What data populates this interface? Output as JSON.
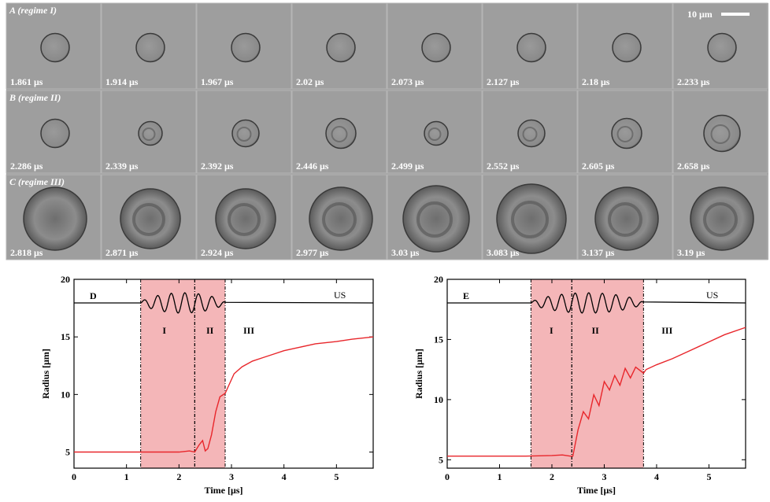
{
  "figure": {
    "scale_bar": "10 μm",
    "panels": [
      {
        "label": "A (regime I)",
        "frames": [
          "1.861 μs",
          "1.914 μs",
          "1.967 μs",
          "2.02 μs",
          "2.073 μs",
          "2.127 μs",
          "2.18 μs",
          "2.233 μs"
        ]
      },
      {
        "label": "B (regime II)",
        "frames": [
          "2.286 μs",
          "2.339 μs",
          "2.392 μs",
          "2.446 μs",
          "2.499 μs",
          "2.552 μs",
          "2.605 μs",
          "2.658 μs"
        ]
      },
      {
        "label": "C (regime III)",
        "frames": [
          "2.818 μs",
          "2.871 μs",
          "2.924 μs",
          "2.977 μs",
          "3.03 μs",
          "3.083 μs",
          "3.137 μs",
          "3.19 μs"
        ]
      }
    ]
  },
  "chart_data": [
    {
      "type": "line",
      "panel": "D",
      "xlabel": "Time [μs]",
      "ylabel": "Radius [μm]",
      "pulse_label": "US",
      "xlim": [
        0,
        5.7
      ],
      "ylim": [
        3.6,
        20
      ],
      "xticks": [
        0,
        1,
        2,
        3,
        4,
        5
      ],
      "yticks": [
        5,
        10,
        15,
        20
      ],
      "regions": [
        {
          "label": "I",
          "start": 1.27,
          "end": 2.3,
          "color": "#f4b6b8"
        },
        {
          "label": "II",
          "start": 2.3,
          "end": 2.88,
          "color": "#f4b6b8"
        },
        {
          "label": "III",
          "start": 2.88,
          "end": 5.7
        }
      ],
      "x": [
        0,
        0.5,
        1,
        1.5,
        2,
        2.2,
        2.3,
        2.38,
        2.45,
        2.5,
        2.55,
        2.62,
        2.7,
        2.78,
        2.88,
        2.95,
        3.05,
        3.2,
        3.4,
        3.6,
        3.8,
        4.0,
        4.3,
        4.6,
        5.0,
        5.3,
        5.7
      ],
      "series": [
        {
          "color": "#e8262b",
          "values": [
            5.0,
            5.0,
            5.0,
            5.0,
            5.0,
            5.1,
            5.0,
            5.6,
            6.0,
            5.1,
            5.3,
            6.5,
            8.5,
            9.8,
            10.1,
            10.8,
            11.8,
            12.4,
            12.9,
            13.2,
            13.5,
            13.8,
            14.1,
            14.4,
            14.6,
            14.8,
            15.0
          ]
        }
      ]
    },
    {
      "type": "line",
      "panel": "E",
      "xlabel": "Time [μs]",
      "ylabel": "Radius [μm]",
      "pulse_label": "US",
      "xlim": [
        0,
        5.7
      ],
      "ylim": [
        4.3,
        20
      ],
      "xticks": [
        0,
        1,
        2,
        3,
        4,
        5
      ],
      "yticks": [
        5,
        10,
        15,
        20
      ],
      "regions": [
        {
          "label": "I",
          "start": 1.6,
          "end": 2.38,
          "color": "#f4b6b8"
        },
        {
          "label": "II",
          "start": 2.38,
          "end": 3.75,
          "color": "#f4b6b8"
        },
        {
          "label": "III",
          "start": 3.75,
          "end": 5.7
        }
      ],
      "x": [
        0,
        0.5,
        1,
        1.5,
        2,
        2.2,
        2.35,
        2.4,
        2.5,
        2.6,
        2.7,
        2.8,
        2.9,
        3.0,
        3.1,
        3.2,
        3.3,
        3.4,
        3.5,
        3.6,
        3.75,
        3.8,
        4.0,
        4.3,
        4.6,
        5.0,
        5.3,
        5.7
      ],
      "series": [
        {
          "color": "#e8262b",
          "values": [
            5.3,
            5.3,
            5.3,
            5.3,
            5.35,
            5.4,
            5.3,
            5.3,
            7.5,
            9.0,
            8.4,
            10.4,
            9.5,
            11.5,
            10.8,
            12.0,
            11.2,
            12.6,
            11.8,
            12.7,
            12.2,
            12.5,
            12.9,
            13.4,
            14.0,
            14.8,
            15.4,
            16.0
          ]
        }
      ]
    }
  ]
}
